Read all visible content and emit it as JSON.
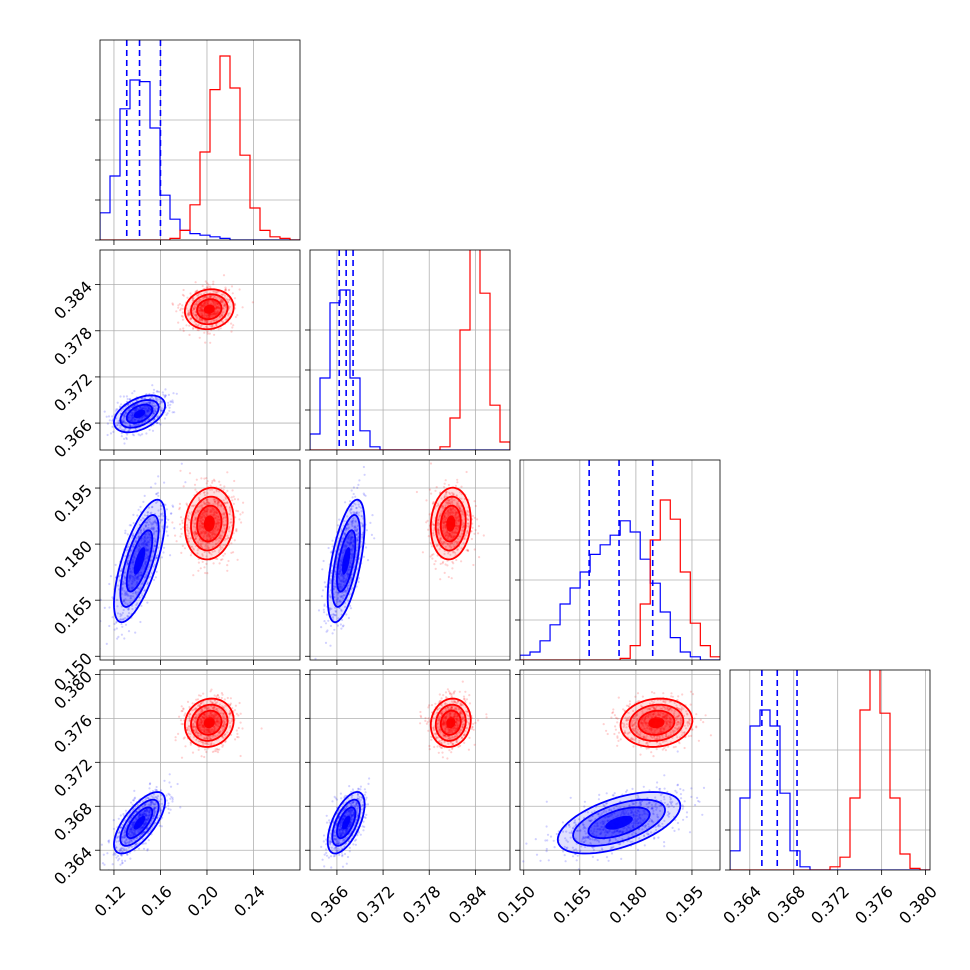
{
  "figure": {
    "background": "#ffffff"
  },
  "colors": {
    "blue": "#0000ff",
    "red": "#ff0000",
    "grid": "#b0b0b0",
    "axis": "#000000"
  },
  "chart_data": {
    "type": "corner",
    "description_series": [
      "blue",
      "red"
    ],
    "params": [
      {
        "key": "p0",
        "range": [
          0.108,
          0.28
        ],
        "ticks": [
          0.12,
          0.16,
          0.2,
          0.24
        ],
        "tick_labels": [
          "0.12",
          "0.16",
          "0.20",
          "0.24"
        ]
      },
      {
        "key": "p1",
        "range": [
          0.3625,
          0.3885
        ],
        "ticks": [
          0.366,
          0.372,
          0.378,
          0.384
        ],
        "tick_labels": [
          "0.366",
          "0.372",
          "0.378",
          "0.384"
        ]
      },
      {
        "key": "p2",
        "range": [
          0.149,
          0.2025
        ],
        "ticks": [
          0.15,
          0.165,
          0.18,
          0.195
        ],
        "tick_labels": [
          "0.150",
          "0.165",
          "0.180",
          "0.195"
        ]
      },
      {
        "key": "p3",
        "range": [
          0.3622,
          0.3804
        ],
        "ticks": [
          0.364,
          0.368,
          0.372,
          0.376,
          0.38
        ],
        "tick_labels": [
          "0.364",
          "0.368",
          "0.372",
          "0.376",
          "0.380"
        ]
      }
    ],
    "series": [
      {
        "name": "",
        "color": "blue",
        "mean": [
          0.142,
          0.3672,
          0.1755,
          0.3665
        ],
        "std": [
          0.011,
          0.0012,
          0.0082,
          0.0014
        ],
        "quantiles_16_50_84": [
          [
            0.131,
            0.142,
            0.16
          ],
          [
            0.3663,
            0.3672,
            0.3681
          ],
          [
            0.1675,
            0.1755,
            0.1845
          ],
          [
            0.3651,
            0.3665,
            0.3683
          ]
        ],
        "corr": [
          [
            1,
            0.45,
            0.7,
            0.7
          ],
          [
            0.45,
            1,
            0.6,
            0.6
          ],
          [
            0.7,
            0.6,
            1,
            0.55
          ],
          [
            0.7,
            0.6,
            0.55,
            1
          ]
        ]
      },
      {
        "name": "",
        "color": "red",
        "mean": [
          0.202,
          0.3808,
          0.1855,
          0.3756
        ],
        "std": [
          0.0105,
          0.0013,
          0.0048,
          0.0011
        ],
        "quantiles": null,
        "corr": [
          [
            1,
            0.1,
            0.1,
            0.1
          ],
          [
            0.1,
            1,
            0.1,
            0.1
          ],
          [
            0.1,
            0.1,
            1,
            0.1
          ],
          [
            0.1,
            0.1,
            0.1,
            1
          ]
        ]
      }
    ],
    "histograms": {
      "p0": {
        "bins_start": 0.108,
        "bin_width": 0.0086,
        "blue": [
          0.17,
          0.4,
          0.82,
          1.0,
          0.99,
          0.7,
          0.28,
          0.13,
          0.06,
          0.04,
          0.03,
          0.02,
          0.01,
          0.0,
          0.0,
          0.0,
          0.0,
          0.0,
          0.0,
          0.0
        ],
        "red": [
          0.0,
          0.0,
          0.0,
          0.0,
          0.0,
          0.0,
          0.0,
          0.01,
          0.06,
          0.22,
          0.55,
          0.94,
          1.15,
          0.95,
          0.53,
          0.2,
          0.06,
          0.02,
          0.01,
          0.0
        ]
      },
      "p1": {
        "bins_start": 0.3625,
        "bin_width": 0.0013,
        "blue": [
          0.1,
          0.45,
          0.92,
          1.0,
          0.45,
          0.12,
          0.02,
          0.0,
          0.0,
          0.0,
          0.0,
          0.0,
          0.0,
          0.0,
          0.0,
          0.0,
          0.0,
          0.0,
          0.0,
          0.0
        ],
        "red": [
          0.0,
          0.0,
          0.0,
          0.0,
          0.0,
          0.0,
          0.0,
          0.0,
          0.0,
          0.0,
          0.0,
          0.0,
          0.0,
          0.02,
          0.2,
          0.75,
          1.26,
          0.98,
          0.28,
          0.05
        ]
      },
      "p2": {
        "bins_start": 0.149,
        "bin_width": 0.00268,
        "blue": [
          0.03,
          0.05,
          0.12,
          0.22,
          0.35,
          0.45,
          0.55,
          0.66,
          0.72,
          0.78,
          0.87,
          0.8,
          0.63,
          0.48,
          0.3,
          0.14,
          0.05,
          0.02,
          0.0,
          0.0
        ],
        "red": [
          0.0,
          0.0,
          0.0,
          0.0,
          0.0,
          0.0,
          0.0,
          0.0,
          0.0,
          0.0,
          0.01,
          0.09,
          0.35,
          0.75,
          1.0,
          0.88,
          0.55,
          0.23,
          0.09,
          0.02
        ]
      },
      "p3": {
        "bins_start": 0.3622,
        "bin_width": 0.00091,
        "blue": [
          0.12,
          0.45,
          0.9,
          1.0,
          0.9,
          0.48,
          0.12,
          0.02,
          0.0,
          0.0,
          0.0,
          0.0,
          0.0,
          0.0,
          0.0,
          0.0,
          0.0,
          0.0,
          0.0,
          0.0
        ],
        "red": [
          0.0,
          0.0,
          0.0,
          0.0,
          0.0,
          0.0,
          0.0,
          0.0,
          0.0,
          0.0,
          0.02,
          0.08,
          0.45,
          1.0,
          1.5,
          0.98,
          0.45,
          0.1,
          0.01,
          0.0
        ]
      }
    },
    "grid": true,
    "contour_levels_sigma": [
      1,
      1.5,
      2
    ],
    "scatter_samples_per_series": 700,
    "tick_label_rotation_deg": -45,
    "title": "",
    "xlabel": "",
    "ylabel": ""
  }
}
